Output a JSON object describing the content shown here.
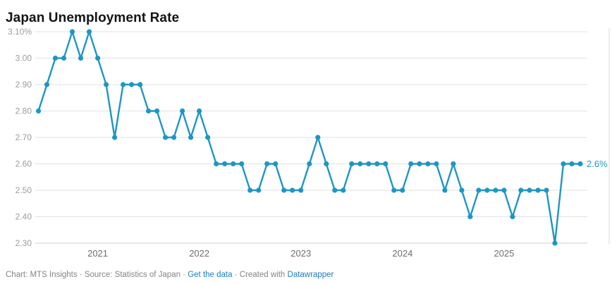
{
  "title": "Japan Unemployment Rate",
  "colors": {
    "line": "#1e96c3",
    "grid": "#e2e2e2",
    "baseline": "#cccccc",
    "right_edge": "#d9d9d9",
    "y_label": "#9c9c9c",
    "x_label": "#6d6d6d",
    "footer_text": "#848484",
    "link": "#1d7cc4",
    "title_text": "#141414"
  },
  "footer": {
    "credit": "Chart: MTS Insights · Source: Statistics of Japan · ",
    "get_data_link": "Get the data",
    "separator": " · ",
    "created_with": "Created with ",
    "datawrapper_link": "Datawrapper"
  },
  "chart_data": {
    "type": "line",
    "title": "Japan Unemployment Rate",
    "unit": "%",
    "grid": "horizontal",
    "legend": "none",
    "ylim": [
      2.3,
      3.1
    ],
    "end_label": "2.6%",
    "y_ticks": {
      "labels": [
        "3.10%",
        "3.00",
        "2.90",
        "2.80",
        "2.70",
        "2.60",
        "2.50",
        "2.40",
        "2.30"
      ],
      "values": [
        3.1,
        3.0,
        2.9,
        2.8,
        2.7,
        2.6,
        2.5,
        2.4,
        2.3
      ]
    },
    "x_tick_years": [
      "2021",
      "2022",
      "2023",
      "2024",
      "2025"
    ],
    "x": [
      "2020-06",
      "2020-07",
      "2020-08",
      "2020-09",
      "2020-10",
      "2020-11",
      "2020-12",
      "2021-01",
      "2021-02",
      "2021-03",
      "2021-04",
      "2021-05",
      "2021-06",
      "2021-07",
      "2021-08",
      "2021-09",
      "2021-10",
      "2021-11",
      "2021-12",
      "2022-01",
      "2022-02",
      "2022-03",
      "2022-04",
      "2022-05",
      "2022-06",
      "2022-07",
      "2022-08",
      "2022-09",
      "2022-10",
      "2022-11",
      "2022-12",
      "2023-01",
      "2023-02",
      "2023-03",
      "2023-04",
      "2023-05",
      "2023-06",
      "2023-07",
      "2023-08",
      "2023-09",
      "2023-10",
      "2023-11",
      "2023-12",
      "2024-01",
      "2024-02",
      "2024-03",
      "2024-04",
      "2024-05",
      "2024-06",
      "2024-07",
      "2024-08",
      "2024-09",
      "2024-10",
      "2024-11",
      "2024-12",
      "2025-01",
      "2025-02",
      "2025-03",
      "2025-04",
      "2025-05",
      "2025-06",
      "2025-07",
      "2025-08",
      "2025-09",
      "2025-10"
    ],
    "values": [
      2.8,
      2.9,
      3.0,
      3.0,
      3.1,
      3.0,
      3.1,
      3.0,
      2.9,
      2.7,
      2.9,
      2.9,
      2.9,
      2.8,
      2.8,
      2.7,
      2.7,
      2.8,
      2.7,
      2.8,
      2.7,
      2.6,
      2.6,
      2.6,
      2.6,
      2.5,
      2.5,
      2.6,
      2.6,
      2.5,
      2.5,
      2.5,
      2.6,
      2.7,
      2.6,
      2.5,
      2.5,
      2.6,
      2.6,
      2.6,
      2.6,
      2.6,
      2.5,
      2.5,
      2.6,
      2.6,
      2.6,
      2.6,
      2.5,
      2.6,
      2.5,
      2.4,
      2.5,
      2.5,
      2.5,
      2.5,
      2.4,
      2.5,
      2.5,
      2.5,
      2.5,
      2.3,
      2.6,
      2.6,
      2.6
    ]
  }
}
